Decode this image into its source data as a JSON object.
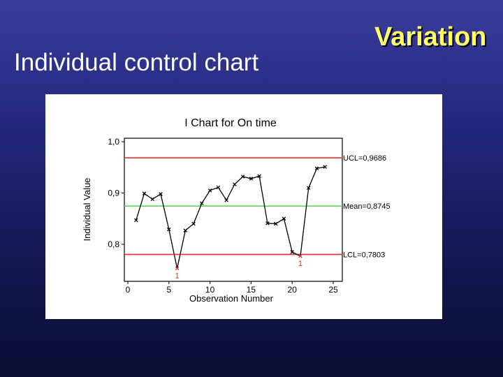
{
  "slide": {
    "title": "Individual control chart",
    "heading": "Variation"
  },
  "colors": {
    "background_top": "#3a3d9c",
    "background_bottom": "#0b0d33",
    "heading": "#ffff66",
    "control_limit": "#e03030",
    "mean_line": "#55dd55",
    "data_line": "#000000",
    "out_of_control_point": "#e03030"
  },
  "chart_data": {
    "type": "line",
    "title": "I Chart for On time",
    "xlabel": "Observation Number",
    "ylabel": "Individual Value",
    "xlim": [
      0,
      25
    ],
    "ylim": [
      0.74,
      1.0
    ],
    "x_ticks": [
      0,
      5,
      10,
      15,
      20,
      25
    ],
    "y_ticks": [
      {
        "value": 1.0,
        "label": "1,0"
      },
      {
        "value": 0.9,
        "label": "0,9"
      },
      {
        "value": 0.8,
        "label": "0,8"
      }
    ],
    "grid": false,
    "series": [
      {
        "x": [
          1,
          2,
          3,
          4,
          5,
          6,
          7,
          8,
          9,
          10,
          11,
          12,
          13,
          14,
          15,
          16,
          17,
          18,
          19,
          20,
          21,
          22,
          23,
          24
        ],
        "values": [
          0.847,
          0.899,
          0.888,
          0.898,
          0.829,
          0.753,
          0.827,
          0.84,
          0.88,
          0.905,
          0.911,
          0.886,
          0.917,
          0.932,
          0.928,
          0.933,
          0.841,
          0.84,
          0.85,
          0.785,
          0.777,
          0.91,
          0.948,
          0.951
        ],
        "marker": "x"
      }
    ],
    "reference_lines": [
      {
        "label": "UCL=0,9686",
        "value": 0.9686,
        "color": "#e03030"
      },
      {
        "label": "Mean=0,8745",
        "value": 0.8745,
        "color": "#55dd55"
      },
      {
        "label": "LCL=0,7803",
        "value": 0.7803,
        "color": "#e03030"
      }
    ],
    "annotations": [
      {
        "x": 6,
        "y": 0.753,
        "text": "1"
      },
      {
        "x": 21,
        "y": 0.777,
        "text": "1"
      }
    ]
  }
}
